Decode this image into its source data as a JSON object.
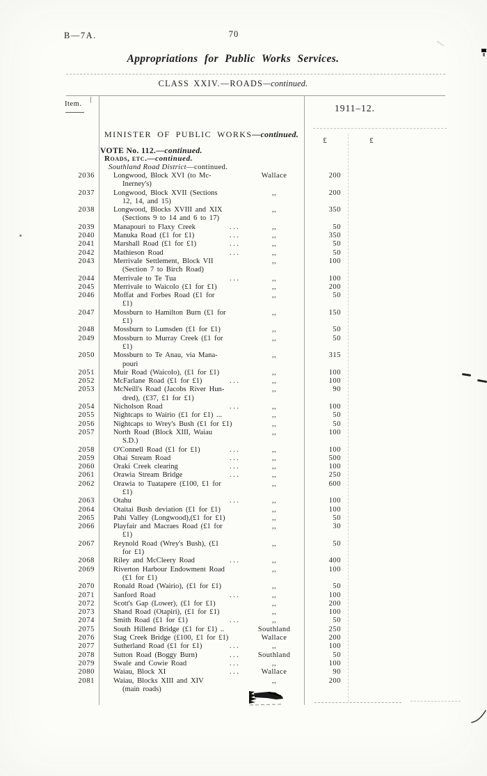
{
  "page": {
    "doc_ref": "B—7A.",
    "page_number": "70",
    "running_title": "Appropriations for Public Works Services.",
    "class_heading_main": "CLASS XXIV.—ROADS",
    "class_heading_suffix": "—continued."
  },
  "table": {
    "item_col_label": "Item.",
    "year_heading": "1911–12.",
    "pound_symbol_1": "£",
    "pound_symbol_2": "£",
    "minister_heading_main": "MINISTER OF PUBLIC WORKS",
    "minister_heading_suffix": "—continued.",
    "vote_heading_main": "VOTE No. 112.",
    "vote_heading_suffix": "—continued.",
    "roads_heading_main": "Roads, etc.",
    "roads_heading_suffix": "—continued.",
    "district_heading_main": "Southland Road District",
    "district_heading_suffix": "—continued.",
    "rows": [
      {
        "item": "2036",
        "desc": [
          "Longwood, Block XVI (to Mc-",
          "Inerney's)"
        ],
        "dots": false,
        "county": "Wallace",
        "amount": "200"
      },
      {
        "item": "2037",
        "desc": [
          "Longwood, Block XVII (Sections",
          "12, 14, and 15)"
        ],
        "dots": false,
        "county": ",,",
        "amount": "200"
      },
      {
        "item": "2038",
        "desc": [
          "Longwood, Blocks XVIII and XIX",
          "(Sections 9 to 14 and 6 to 17)"
        ],
        "dots": false,
        "county": ",,",
        "amount": "350"
      },
      {
        "item": "2039",
        "desc": [
          "Manapouri to Flaxy Creek"
        ],
        "dots": true,
        "county": ",,",
        "amount": "50"
      },
      {
        "item": "2040",
        "desc": [
          "Manuka Road (£1 for £1)"
        ],
        "dots": true,
        "county": ",,",
        "amount": "350"
      },
      {
        "item": "2041",
        "desc": [
          "Marshall Road (£1 for £1)"
        ],
        "dots": true,
        "county": ",,",
        "amount": "50"
      },
      {
        "item": "2042",
        "desc": [
          "Mathieson Road"
        ],
        "dots": true,
        "county": ",,",
        "amount": "50"
      },
      {
        "item": "2043",
        "desc": [
          "Merrivale Settlement, Block VII",
          "(Section 7 to Birch Road)"
        ],
        "dots": false,
        "county": ",,",
        "amount": "100"
      },
      {
        "item": "2044",
        "desc": [
          "Merrivale to Te Tua"
        ],
        "dots": true,
        "county": ",,",
        "amount": "100"
      },
      {
        "item": "2045",
        "desc": [
          "Merrivale to Waicolo (£1 for £1)"
        ],
        "dots": false,
        "county": ",,",
        "amount": "200"
      },
      {
        "item": "2046",
        "desc": [
          "Moffat and Forbes Road (£1 for",
          "£1)"
        ],
        "dots": false,
        "county": ",,",
        "amount": "50"
      },
      {
        "item": "2047",
        "desc": [
          "Mossburn to Hamilton Burn (£1 for",
          "£1)"
        ],
        "dots": false,
        "county": ",,",
        "amount": "150"
      },
      {
        "item": "2048",
        "desc": [
          "Mossburn to Lumsden (£1 for £1)"
        ],
        "dots": false,
        "county": ",,",
        "amount": "50"
      },
      {
        "item": "2049",
        "desc": [
          "Mossburn to Murray Creek (£1 for",
          "£1)"
        ],
        "dots": false,
        "county": ",,",
        "amount": "50"
      },
      {
        "item": "2050",
        "desc": [
          "Mossburn to Te Anau, via Mana-",
          "pouri"
        ],
        "dots": false,
        "county": ",,",
        "amount": "315"
      },
      {
        "item": "2051",
        "desc": [
          "Muir Road (Waicolo), (£1 for £1)"
        ],
        "dots": false,
        "county": ",,",
        "amount": "100"
      },
      {
        "item": "2052",
        "desc": [
          "McFarlane Road (£1 for £1)"
        ],
        "dots": true,
        "county": ",,",
        "amount": "100"
      },
      {
        "item": "2053",
        "desc": [
          "McNeill's Road (Jacobs River Hun-",
          "dred), (£37, £1 for £1)"
        ],
        "dots": false,
        "county": ",,",
        "amount": "90"
      },
      {
        "item": "2054",
        "desc": [
          "Nicholson Road"
        ],
        "dots": true,
        "county": ",,",
        "amount": "100"
      },
      {
        "item": "2055",
        "desc": [
          "Nightcaps to Wairio (£1 for £1) ..."
        ],
        "dots": false,
        "county": ",,",
        "amount": "50"
      },
      {
        "item": "2056",
        "desc": [
          "Nightcaps to Wrey's Bush (£1 for £1)"
        ],
        "dots": false,
        "county": ",,",
        "amount": "50"
      },
      {
        "item": "2057",
        "desc": [
          "North Road (Block XIII, Waiau",
          "S.D.)"
        ],
        "dots": false,
        "county": ",,",
        "amount": "100"
      },
      {
        "item": "2058",
        "desc": [
          "O'Connell Road (£1 for £1)"
        ],
        "dots": true,
        "county": ",,",
        "amount": "100"
      },
      {
        "item": "2059",
        "desc": [
          "Ohai Stream Road"
        ],
        "dots": true,
        "county": ",,",
        "amount": "500"
      },
      {
        "item": "2060",
        "desc": [
          "Oraki Creek clearing"
        ],
        "dots": true,
        "county": ",,",
        "amount": "100"
      },
      {
        "item": "2061",
        "desc": [
          "Orawia Stream Bridge"
        ],
        "dots": true,
        "county": ",,",
        "amount": "250"
      },
      {
        "item": "2062",
        "desc": [
          "Orawia to Tuatapere (£100, £1 for",
          "£1)"
        ],
        "dots": false,
        "county": ",,",
        "amount": "600"
      },
      {
        "item": "2063",
        "desc": [
          "Otahu"
        ],
        "dots": true,
        "county": ",,",
        "amount": "100"
      },
      {
        "item": "2064",
        "desc": [
          "Otaitai Bush deviation (£1 for £1)"
        ],
        "dots": false,
        "county": ",,",
        "amount": "100"
      },
      {
        "item": "2065",
        "desc": [
          "Pahi Valley (Longwood),(£1 for £1)"
        ],
        "dots": false,
        "county": ",,",
        "amount": "50"
      },
      {
        "item": "2066",
        "desc": [
          "Playfair and Macraes Road (£1 for",
          "£1)"
        ],
        "dots": false,
        "county": ",,",
        "amount": "30"
      },
      {
        "item": "2067",
        "desc": [
          "Reynold Road (Wrey's Bush), (£1",
          "for £1)"
        ],
        "dots": false,
        "county": ",,",
        "amount": "50"
      },
      {
        "item": "2068",
        "desc": [
          "Riley and McCleery Road"
        ],
        "dots": true,
        "county": ",,",
        "amount": "400"
      },
      {
        "item": "2069",
        "desc": [
          "Riverton Harbour Endowment Road",
          "(£1 for £1)"
        ],
        "dots": false,
        "county": ",,",
        "amount": "100"
      },
      {
        "item": "2070",
        "desc": [
          "Ronald Road (Wairio), (£1 for £1)"
        ],
        "dots": false,
        "county": ",,",
        "amount": "50"
      },
      {
        "item": "2071",
        "desc": [
          "Sanford Road"
        ],
        "dots": true,
        "county": ",,",
        "amount": "100"
      },
      {
        "item": "2072",
        "desc": [
          "Scott's Gap (Lower), (£1 for £1)"
        ],
        "dots": false,
        "county": ",,",
        "amount": "200"
      },
      {
        "item": "2073",
        "desc": [
          "Shand Road (Otapiri), (£1 for £1)"
        ],
        "dots": false,
        "county": ",,",
        "amount": "100"
      },
      {
        "item": "2074",
        "desc": [
          "Smith Road (£1 for £1)"
        ],
        "dots": true,
        "county": ",,",
        "amount": "50"
      },
      {
        "item": "2075",
        "desc": [
          "South Hillend Bridge (£1 for £1) .."
        ],
        "dots": false,
        "county": "Southland",
        "amount": "250"
      },
      {
        "item": "2076",
        "desc": [
          "Stag Creek Bridge (£100, £1 for £1)"
        ],
        "dots": false,
        "county": "Wallace",
        "amount": "200"
      },
      {
        "item": "2077",
        "desc": [
          "Sutherland Road (£1 for £1)"
        ],
        "dots": true,
        "county": ",,",
        "amount": "100"
      },
      {
        "item": "2078",
        "desc": [
          "Sutton Road (Boggy Burn)"
        ],
        "dots": true,
        "county": "Southland",
        "amount": "50"
      },
      {
        "item": "2079",
        "desc": [
          "Swale and Cowie Road"
        ],
        "dots": true,
        "county": ",,",
        "amount": "100"
      },
      {
        "item": "2080",
        "desc": [
          "Waiau, Block XI"
        ],
        "dots": true,
        "county": "Wallace",
        "amount": "90"
      },
      {
        "item": "2081",
        "desc": [
          "Waiau, Blocks XIII and XIV",
          "(main roads)"
        ],
        "dots": false,
        "county": ",,",
        "amount": "200"
      }
    ]
  }
}
